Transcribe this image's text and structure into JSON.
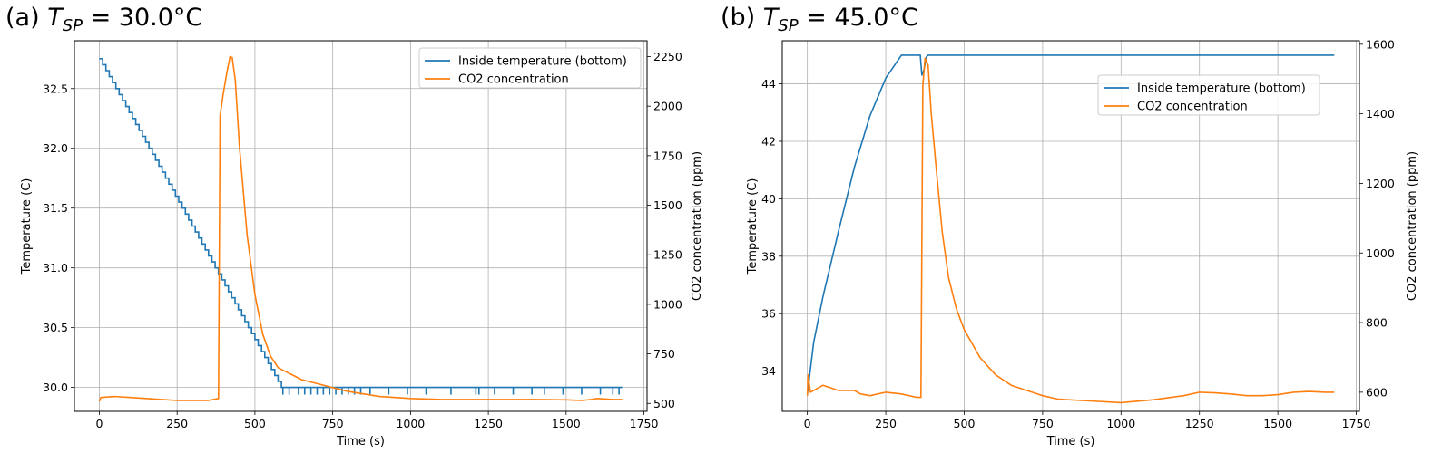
{
  "chart_data": [
    {
      "type": "line",
      "panel_label": "(a)",
      "title_var": "T",
      "title_sub": "SP",
      "title_value": "= 30.0°C",
      "xlabel": "Time (s)",
      "ylabel": "Temperature (C)",
      "y2label": "CO2 concentration (ppm)",
      "xlim": [
        -80,
        1760
      ],
      "ylim": [
        29.8,
        32.9
      ],
      "y2lim": [
        460,
        2330
      ],
      "xticks": [
        0,
        250,
        500,
        750,
        1000,
        1250,
        1500,
        1750
      ],
      "yticks": [
        30.0,
        30.5,
        31.0,
        31.5,
        32.0,
        32.5
      ],
      "y2ticks": [
        500,
        750,
        1000,
        1250,
        1500,
        1750,
        2000,
        2250
      ],
      "grid": true,
      "legend_position": "top-right",
      "series": [
        {
          "name": "Inside temperature (bottom)",
          "axis": "left",
          "color": "#1f77b4",
          "style": "staircase",
          "x": [
            0,
            585
          ],
          "y": [
            32.75,
            30.0
          ],
          "steps": 55,
          "end_x": 1680,
          "end_y": 30.0,
          "dips_y": 29.94,
          "dips_x": [
            590,
            610,
            640,
            660,
            680,
            700,
            720,
            740,
            760,
            780,
            800,
            820,
            840,
            870,
            930,
            990,
            1050,
            1130,
            1210,
            1220,
            1270,
            1330,
            1390,
            1430,
            1490,
            1550,
            1610,
            1650,
            1670
          ]
        },
        {
          "name": "CO2 concentration",
          "axis": "right",
          "color": "#ff7f0e",
          "x": [
            0,
            5,
            50,
            100,
            150,
            200,
            250,
            300,
            350,
            383,
            388,
            398,
            410,
            420,
            427,
            437,
            450,
            475,
            500,
            525,
            550,
            575,
            600,
            625,
            650,
            700,
            750,
            800,
            900,
            1000,
            1100,
            1200,
            1300,
            1400,
            1500,
            1550,
            1580,
            1600,
            1650,
            1680
          ],
          "y": [
            510,
            530,
            535,
            530,
            525,
            520,
            515,
            515,
            515,
            525,
            1950,
            2060,
            2170,
            2250,
            2245,
            2130,
            1800,
            1350,
            1050,
            850,
            740,
            680,
            660,
            640,
            620,
            600,
            580,
            560,
            535,
            525,
            520,
            520,
            520,
            520,
            518,
            515,
            520,
            525,
            520,
            520
          ]
        }
      ]
    },
    {
      "type": "line",
      "panel_label": "(b)",
      "title_var": "T",
      "title_sub": "SP",
      "title_value": "= 45.0°C",
      "xlabel": "Time (s)",
      "ylabel": "Temperature (C)",
      "y2label": "CO2 concentration (ppm)",
      "xlim": [
        -80,
        1760
      ],
      "ylim": [
        32.6,
        45.5
      ],
      "y2lim": [
        545,
        1610
      ],
      "xticks": [
        0,
        250,
        500,
        750,
        1000,
        1250,
        1500,
        1750
      ],
      "yticks": [
        34,
        36,
        38,
        40,
        42,
        44
      ],
      "y2ticks": [
        600,
        800,
        1000,
        1200,
        1400,
        1600
      ],
      "grid": true,
      "legend_position": "upper-center-right",
      "series": [
        {
          "name": "Inside temperature (bottom)",
          "axis": "left",
          "color": "#1f77b4",
          "x": [
            0,
            20,
            50,
            100,
            150,
            200,
            250,
            300,
            320,
            360,
            365,
            372,
            380,
            385,
            400,
            500,
            750,
            1000,
            1250,
            1500,
            1680
          ],
          "y": [
            33.2,
            35.0,
            36.6,
            38.9,
            41.1,
            42.9,
            44.2,
            45.0,
            45.0,
            45.0,
            44.3,
            44.5,
            44.95,
            45.0,
            45.0,
            45.0,
            45.0,
            45.0,
            45.0,
            45.0,
            45.0
          ]
        },
        {
          "name": "CO2 concentration",
          "axis": "right",
          "color": "#ff7f0e",
          "x": [
            0,
            2,
            10,
            50,
            100,
            150,
            170,
            200,
            250,
            300,
            350,
            362,
            368,
            375,
            385,
            395,
            410,
            430,
            450,
            475,
            500,
            550,
            600,
            650,
            700,
            750,
            800,
            900,
            1000,
            1100,
            1200,
            1250,
            1300,
            1350,
            1400,
            1450,
            1500,
            1550,
            1600,
            1650,
            1680
          ],
          "y": [
            590,
            650,
            600,
            620,
            605,
            605,
            595,
            590,
            600,
            595,
            585,
            585,
            1480,
            1560,
            1540,
            1400,
            1250,
            1060,
            930,
            840,
            780,
            700,
            650,
            620,
            605,
            590,
            580,
            575,
            570,
            578,
            590,
            600,
            598,
            595,
            590,
            590,
            593,
            600,
            602,
            600,
            600
          ]
        }
      ]
    }
  ]
}
